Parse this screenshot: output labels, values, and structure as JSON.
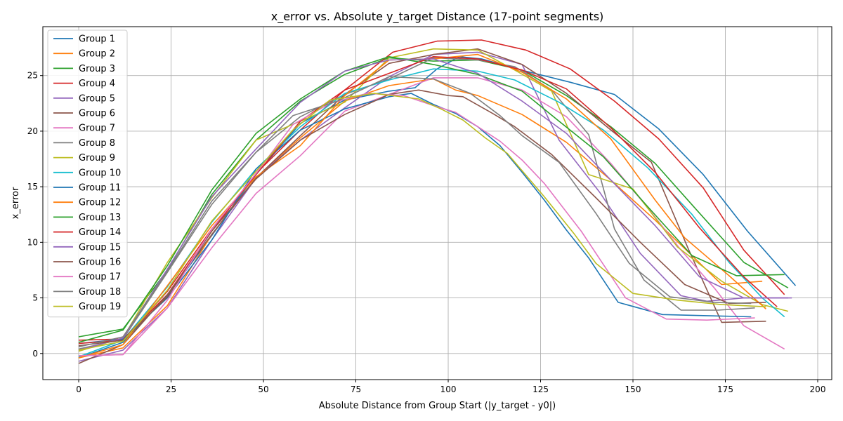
{
  "chart_data": {
    "type": "line",
    "title": "x_error vs. Absolute y_target Distance (17-point segments)",
    "xlabel": "Absolute Distance from Group Start (|y_target - y0|)",
    "ylabel": "x_error",
    "xlim": [
      -9.7,
      203.8
    ],
    "ylim": [
      -2.35,
      29.4
    ],
    "xticks": [
      0,
      25,
      50,
      75,
      100,
      125,
      150,
      175,
      200
    ],
    "yticks": [
      0,
      5,
      10,
      15,
      20,
      25
    ],
    "grid": true,
    "legend_position": "upper-left",
    "series": [
      {
        "name": "Group 1",
        "color": "#1f77b4",
        "x": [
          0,
          12,
          24,
          36,
          48,
          60,
          72,
          84,
          91,
          97,
          103,
          109,
          121,
          133,
          145,
          157,
          169,
          181,
          194
        ],
        "y": [
          -0.4,
          1.0,
          5.2,
          10.6,
          16.1,
          20.7,
          22.8,
          23.6,
          23.9,
          25.6,
          26.7,
          26.5,
          25.4,
          24.4,
          23.3,
          20.2,
          16.1,
          11.0,
          6.1
        ]
      },
      {
        "name": "Group 2",
        "color": "#ff7f0e",
        "x": [
          0,
          12,
          24,
          36,
          48,
          60,
          72,
          84,
          96,
          102,
          108,
          120,
          132,
          144,
          156,
          166,
          174,
          185
        ],
        "y": [
          -0.4,
          0.5,
          4.3,
          10.7,
          15.8,
          19.4,
          22.7,
          24.1,
          24.7,
          23.7,
          23.2,
          21.5,
          19.0,
          15.6,
          12.0,
          8.8,
          6.2,
          6.5
        ]
      },
      {
        "name": "Group 3",
        "color": "#2ca02c",
        "x": [
          0,
          12,
          24,
          36,
          48,
          60,
          72,
          84,
          96,
          108,
          120,
          132,
          144,
          156,
          167,
          180,
          192
        ],
        "y": [
          1.5,
          2.2,
          7.5,
          14.3,
          19.2,
          22.7,
          25.1,
          26.6,
          26.3,
          26.4,
          25.5,
          23.2,
          20.4,
          17.1,
          13.0,
          8.2,
          5.9
        ]
      },
      {
        "name": "Group 4",
        "color": "#d62728",
        "x": [
          0,
          12,
          24,
          36,
          48,
          60,
          72,
          85,
          97,
          109,
          121,
          133,
          145,
          157,
          169,
          180,
          191
        ],
        "y": [
          1.2,
          1.3,
          5.3,
          11.0,
          16.2,
          20.1,
          23.7,
          27.1,
          28.1,
          28.2,
          27.3,
          25.6,
          22.7,
          19.3,
          14.9,
          9.3,
          5.3
        ]
      },
      {
        "name": "Group 5",
        "color": "#9467bd",
        "x": [
          0,
          12,
          24,
          36,
          48,
          60,
          72,
          84,
          96,
          108,
          120,
          130,
          141,
          152,
          163,
          170,
          180,
          192
        ],
        "y": [
          -0.7,
          0.3,
          4.1,
          10.2,
          15.8,
          19.2,
          22.1,
          24.9,
          26.9,
          27.1,
          26.0,
          19.2,
          14.5,
          9.0,
          5.2,
          4.7,
          5.0,
          5.0
        ]
      },
      {
        "name": "Group 6",
        "color": "#8c564b",
        "x": [
          0,
          12,
          24,
          36,
          48,
          60,
          72,
          84,
          96,
          108,
          120,
          132,
          144,
          155,
          165,
          174,
          186
        ],
        "y": [
          -0.9,
          0.8,
          5.3,
          10.7,
          15.8,
          19.6,
          23.3,
          26.1,
          26.9,
          27.4,
          26.0,
          23.4,
          20.1,
          17.2,
          9.4,
          2.8,
          2.9
        ]
      },
      {
        "name": "Group 7",
        "color": "#e377c2",
        "x": [
          0,
          12,
          24,
          36,
          48,
          60,
          72,
          84,
          96,
          108,
          120,
          132,
          144,
          154,
          163,
          172,
          180,
          191
        ],
        "y": [
          -0.2,
          -0.1,
          4.1,
          9.5,
          14.4,
          17.8,
          21.8,
          23.3,
          24.8,
          24.8,
          23.7,
          21.3,
          17.1,
          13.1,
          9.3,
          5.9,
          2.5,
          0.4
        ]
      },
      {
        "name": "Group 8",
        "color": "#7f7f7f",
        "x": [
          0,
          12,
          24,
          36,
          48,
          60,
          72,
          84,
          96,
          108,
          118,
          128,
          138,
          145,
          153,
          163,
          173,
          183
        ],
        "y": [
          0.4,
          1.3,
          7.3,
          13.4,
          18.1,
          21.3,
          23.3,
          24.7,
          26.6,
          26.4,
          25.8,
          23.7,
          19.7,
          11.2,
          6.6,
          3.9,
          3.9,
          4.1
        ]
      },
      {
        "name": "Group 9",
        "color": "#bcbd22",
        "x": [
          0,
          12,
          24,
          36,
          48,
          60,
          72,
          84,
          96,
          108,
          118,
          128,
          138,
          150,
          162,
          174,
          185,
          192
        ],
        "y": [
          0.2,
          1.4,
          8.2,
          14.0,
          19.2,
          20.9,
          22.6,
          26.6,
          27.4,
          27.3,
          25.5,
          23.6,
          16.1,
          14.8,
          9.6,
          6.5,
          4.4,
          3.8
        ]
      },
      {
        "name": "Group 10",
        "color": "#17becf",
        "x": [
          0,
          12,
          24,
          36,
          48,
          60,
          72,
          84,
          96,
          108,
          118,
          130,
          142,
          154,
          166,
          176,
          185,
          191
        ],
        "y": [
          -0.3,
          1.2,
          6.0,
          11.8,
          16.6,
          20.4,
          23.4,
          24.6,
          25.6,
          25.4,
          24.6,
          22.6,
          20.1,
          16.7,
          12.5,
          8.2,
          5.0,
          3.3
        ]
      },
      {
        "name": "Group 11",
        "color": "#1f77b4",
        "x": [
          0,
          12,
          24,
          36,
          48,
          60,
          72,
          84,
          90,
          96,
          102,
          108,
          114,
          120,
          126,
          132,
          138,
          146,
          158,
          170,
          182
        ],
        "y": [
          0.9,
          1.3,
          5.0,
          10.2,
          16.6,
          20.1,
          22.0,
          23.1,
          23.4,
          22.4,
          21.6,
          20.4,
          18.7,
          16.3,
          13.8,
          11.1,
          8.6,
          4.6,
          3.5,
          3.4,
          3.3
        ]
      },
      {
        "name": "Group 12",
        "color": "#ff7f0e",
        "x": [
          0,
          12,
          24,
          36,
          48,
          60,
          72,
          84,
          96,
          108,
          120,
          132,
          144,
          156,
          164,
          176,
          186
        ],
        "y": [
          -0.4,
          0.8,
          6.1,
          11.5,
          15.9,
          18.7,
          23.2,
          26.4,
          26.5,
          26.9,
          25.3,
          22.9,
          19.3,
          13.8,
          10.4,
          7.0,
          4.0
        ]
      },
      {
        "name": "Group 13",
        "color": "#2ca02c",
        "x": [
          0,
          12,
          24,
          36,
          48,
          60,
          72,
          84,
          96,
          108,
          120,
          130,
          142,
          154,
          166,
          178,
          191
        ],
        "y": [
          1.0,
          2.1,
          7.9,
          14.7,
          19.8,
          22.9,
          25.4,
          26.7,
          26.0,
          25.1,
          23.6,
          20.9,
          17.7,
          13.2,
          8.8,
          7.0,
          7.1
        ]
      },
      {
        "name": "Group 14",
        "color": "#d62728",
        "x": [
          0,
          12,
          24,
          36,
          48,
          60,
          72,
          84,
          96,
          108,
          120,
          132,
          144,
          156,
          168,
          180,
          189
        ],
        "y": [
          0.9,
          1.2,
          5.6,
          11.2,
          16.1,
          20.9,
          23.7,
          25.2,
          26.7,
          26.5,
          25.5,
          23.8,
          20.3,
          16.3,
          11.3,
          6.9,
          4.2
        ]
      },
      {
        "name": "Group 15",
        "color": "#9467bd",
        "x": [
          0,
          12,
          24,
          36,
          48,
          60,
          72,
          84,
          96,
          108,
          120,
          132,
          144,
          156,
          168,
          180,
          193
        ],
        "y": [
          0.3,
          1.4,
          7.6,
          14.1,
          18.4,
          22.6,
          25.4,
          26.4,
          26.5,
          25.2,
          22.7,
          19.8,
          15.6,
          11.5,
          6.9,
          5.0,
          5.0
        ]
      },
      {
        "name": "Group 16",
        "color": "#8c564b",
        "x": [
          0,
          12,
          24,
          36,
          48,
          60,
          72,
          84,
          92,
          100,
          104,
          112,
          118,
          128,
          140,
          152,
          164,
          176,
          186
        ],
        "y": [
          0.7,
          1.2,
          5.1,
          11.0,
          15.7,
          19.2,
          21.5,
          23.3,
          23.7,
          23.2,
          23.1,
          21.6,
          20.4,
          17.9,
          14.0,
          10.0,
          6.2,
          4.5,
          4.6
        ]
      },
      {
        "name": "Group 17",
        "color": "#e377c2",
        "x": [
          0,
          12,
          24,
          36,
          48,
          58,
          68,
          78,
          88,
          96,
          102,
          108,
          114,
          120,
          126,
          136,
          148,
          159,
          170,
          183
        ],
        "y": [
          -0.2,
          -0.1,
          4.8,
          11.2,
          16.2,
          20.6,
          22.5,
          23.4,
          23.2,
          22.3,
          21.7,
          20.4,
          19.1,
          17.4,
          15.3,
          11.0,
          5.0,
          3.1,
          3.0,
          3.2
        ]
      },
      {
        "name": "Group 18",
        "color": "#7f7f7f",
        "x": [
          0,
          12,
          24,
          36,
          48,
          58,
          70,
          84,
          96,
          106,
          114,
          120,
          130,
          140,
          149,
          160,
          172,
          182
        ],
        "y": [
          0.6,
          1.5,
          7.4,
          13.7,
          18.1,
          21.4,
          22.7,
          24.9,
          24.7,
          23.4,
          21.4,
          19.6,
          17.2,
          12.6,
          8.1,
          5.1,
          4.6,
          4.5
        ]
      },
      {
        "name": "Group 19",
        "color": "#bcbd22",
        "x": [
          0,
          12,
          24,
          36,
          48,
          58,
          68,
          80,
          92,
          98,
          104,
          110,
          116,
          126,
          134,
          140,
          150,
          162,
          174,
          186
        ],
        "y": [
          0.3,
          1.1,
          5.7,
          11.9,
          16.4,
          20.1,
          22.8,
          23.4,
          22.9,
          22.0,
          21.0,
          19.4,
          18.0,
          14.1,
          10.8,
          8.1,
          5.4,
          4.8,
          4.4,
          4.2
        ]
      }
    ]
  }
}
